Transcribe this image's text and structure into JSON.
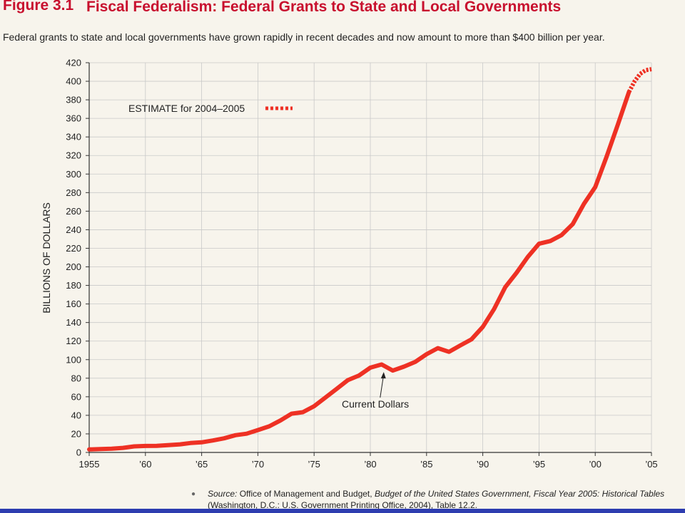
{
  "header": {
    "figure_number": "Figure 3.1",
    "title": "Fiscal Federalism: Federal Grants to State and Local Governments"
  },
  "subtitle": "Federal grants to state and local governments have grown rapidly in recent decades and now amount to more than $400 billion per year.",
  "source": {
    "label": "Source:",
    "text_1": " Office of Management and Budget, ",
    "italic": "Budget of the United States Government, Fiscal Year 2005: Historical Tables",
    "text_2": " (Washington, D.C.: U.S. Government Printing Office, 2004), Table 12.2."
  },
  "colors": {
    "line": "#ee3124",
    "title": "#c8102e",
    "grid": "#c9c9c9",
    "background": "#f7f4ec",
    "bottom_bar": "#2d3db0"
  },
  "chart_data": {
    "type": "line",
    "title": "",
    "xlabel": "",
    "ylabel": "BILLIONS OF DOLLARS",
    "xlim": [
      1955,
      2005
    ],
    "ylim": [
      0,
      420
    ],
    "x_ticks": [
      1955,
      1960,
      1965,
      1970,
      1975,
      1980,
      1985,
      1990,
      1995,
      2000,
      2005
    ],
    "x_tick_labels": [
      "1955",
      "’60",
      "’65",
      "’70",
      "’75",
      "’80",
      "’85",
      "’90",
      "’95",
      "’00",
      "’05"
    ],
    "y_ticks": [
      0,
      20,
      40,
      60,
      80,
      100,
      120,
      140,
      160,
      180,
      200,
      220,
      240,
      260,
      280,
      300,
      320,
      340,
      360,
      380,
      400,
      420
    ],
    "grid": true,
    "series": [
      {
        "name": "Current Dollars",
        "style": "solid",
        "x": [
          1955,
          1956,
          1957,
          1958,
          1959,
          1960,
          1961,
          1962,
          1963,
          1964,
          1965,
          1966,
          1967,
          1968,
          1969,
          1970,
          1971,
          1972,
          1973,
          1974,
          1975,
          1976,
          1977,
          1978,
          1979,
          1980,
          1981,
          1982,
          1983,
          1984,
          1985,
          1986,
          1987,
          1988,
          1989,
          1990,
          1991,
          1992,
          1993,
          1994,
          1995,
          1996,
          1997,
          1998,
          1999,
          2000,
          2001,
          2002,
          2003
        ],
        "y": [
          3.2,
          3.7,
          4.0,
          4.9,
          6.5,
          7.0,
          7.1,
          7.9,
          8.6,
          10.1,
          10.9,
          12.9,
          15.2,
          18.6,
          20.2,
          24.1,
          28.1,
          34.4,
          41.8,
          43.4,
          49.8,
          59.1,
          68.4,
          77.9,
          82.9,
          91.4,
          94.8,
          88.2,
          92.5,
          97.6,
          105.9,
          112.4,
          108.4,
          115.3,
          121.9,
          135.3,
          154.5,
          178.1,
          193.6,
          210.6,
          224.9,
          227.8,
          234.2,
          246.1,
          267.9,
          285.9,
          318.5,
          352.9,
          388.5
        ]
      },
      {
        "name": "ESTIMATE for 2004–2005",
        "style": "dotted",
        "x": [
          2003,
          2003.5,
          2004,
          2004.5,
          2005
        ],
        "y": [
          388.5,
          400,
          408,
          412,
          413
        ]
      }
    ],
    "annotations": [
      {
        "text": "Current Dollars",
        "x": 1981,
        "y": 92
      },
      {
        "text": "ESTIMATE for 2004–2005"
      }
    ]
  }
}
